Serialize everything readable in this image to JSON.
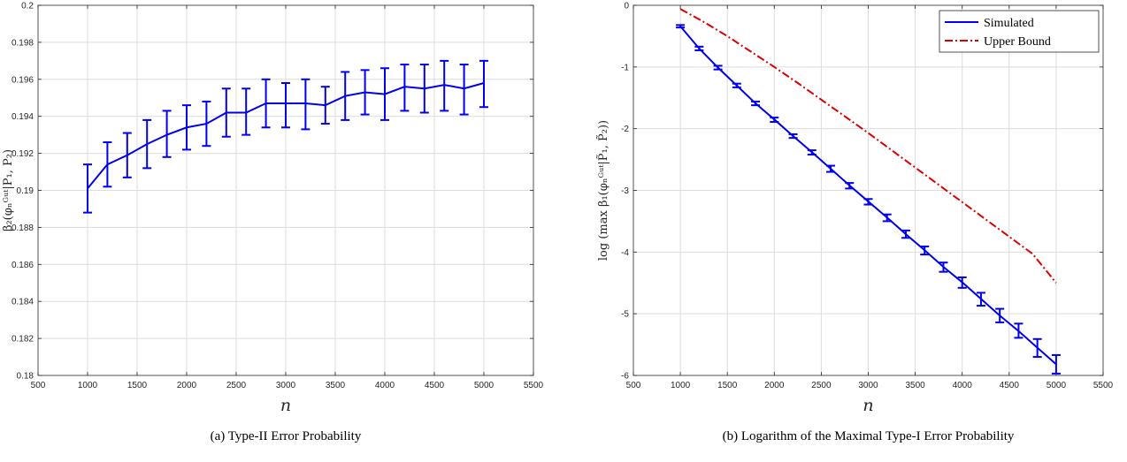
{
  "chart_data": [
    {
      "type": "line",
      "xlabel": "n",
      "ylabel": "β₂(φₙᴳᵘᵗ|P₁, P₂)",
      "caption": "(a) Type-II Error Probability",
      "xlim": [
        500,
        5500
      ],
      "ylim": [
        0.18,
        0.2
      ],
      "xticks": [
        500,
        1000,
        1500,
        2000,
        2500,
        3000,
        3500,
        4000,
        4500,
        5000,
        5500
      ],
      "yticks": [
        0.18,
        0.182,
        0.184,
        0.186,
        0.188,
        0.19,
        0.192,
        0.194,
        0.196,
        0.198,
        0.2
      ],
      "ytick_labels": [
        "0.18",
        "0.182",
        "0.184",
        "0.186",
        "0.188",
        "0.19",
        "0.192",
        "0.194",
        "0.196",
        "0.198",
        "0.2"
      ],
      "grid": true,
      "series": [
        {
          "color": "#0000ee",
          "style": "solid",
          "x": [
            1000,
            1200,
            1400,
            1600,
            1800,
            2000,
            2200,
            2400,
            2600,
            2800,
            3000,
            3200,
            3400,
            3600,
            3800,
            4000,
            4200,
            4400,
            4600,
            4800,
            5000
          ],
          "values": [
            0.1901,
            0.1914,
            0.1919,
            0.1925,
            0.193,
            0.1934,
            0.1936,
            0.1942,
            0.1942,
            0.1947,
            0.1947,
            0.1947,
            0.1946,
            0.1951,
            0.1953,
            0.1952,
            0.1956,
            0.1955,
            0.1957,
            0.1955,
            0.1958
          ],
          "err_low": [
            0.1888,
            0.1902,
            0.1907,
            0.1912,
            0.1918,
            0.1922,
            0.1924,
            0.1929,
            0.193,
            0.1934,
            0.1934,
            0.1933,
            0.1936,
            0.1938,
            0.1941,
            0.1938,
            0.1943,
            0.1942,
            0.1943,
            0.1941,
            0.1945
          ],
          "err_high": [
            0.1914,
            0.1926,
            0.1931,
            0.1938,
            0.1943,
            0.1946,
            0.1948,
            0.1955,
            0.1955,
            0.196,
            0.1958,
            0.196,
            0.1956,
            0.1964,
            0.1965,
            0.1966,
            0.1968,
            0.1968,
            0.197,
            0.1968,
            0.197
          ]
        }
      ]
    },
    {
      "type": "line",
      "xlabel": "n",
      "ylabel": "log (max β₁(φₙᴳᵘᵗ|P̃₁, P̃₂))",
      "caption": "(b) Logarithm of the Maximal Type-I Error Probability",
      "xlim": [
        500,
        5500
      ],
      "ylim": [
        -6,
        0
      ],
      "xticks": [
        500,
        1000,
        1500,
        2000,
        2500,
        3000,
        3500,
        4000,
        4500,
        5000,
        5500
      ],
      "yticks": [
        -6,
        -5,
        -4,
        -3,
        -2,
        -1,
        0
      ],
      "ytick_labels": [
        "-6",
        "-5",
        "-4",
        "-3",
        "-2",
        "-1",
        "0"
      ],
      "grid": true,
      "legend": "top-right",
      "series": [
        {
          "name": "Simulated",
          "color": "#0000ee",
          "style": "solid",
          "x": [
            1000,
            1200,
            1400,
            1600,
            1800,
            2000,
            2200,
            2400,
            2600,
            2800,
            3000,
            3200,
            3400,
            3600,
            3800,
            4000,
            4200,
            4400,
            4600,
            4800,
            5000
          ],
          "values": [
            -0.34,
            -0.7,
            -1.01,
            -1.3,
            -1.59,
            -1.85,
            -2.12,
            -2.38,
            -2.65,
            -2.92,
            -3.18,
            -3.44,
            -3.71,
            -3.97,
            -4.24,
            -4.49,
            -4.76,
            -5.03,
            -5.28,
            -5.55,
            -5.82
          ],
          "err_low": [
            -0.36,
            -0.73,
            -1.04,
            -1.33,
            -1.62,
            -1.89,
            -2.15,
            -2.42,
            -2.7,
            -2.97,
            -3.23,
            -3.5,
            -3.77,
            -4.04,
            -4.32,
            -4.58,
            -4.87,
            -5.14,
            -5.39,
            -5.7,
            -5.97
          ],
          "err_high": [
            -0.32,
            -0.67,
            -0.98,
            -1.27,
            -1.56,
            -1.82,
            -2.09,
            -2.35,
            -2.6,
            -2.88,
            -3.14,
            -3.39,
            -3.65,
            -3.91,
            -4.17,
            -4.41,
            -4.66,
            -4.92,
            -5.16,
            -5.41,
            -5.67
          ]
        },
        {
          "name": "Upper Bound",
          "color": "#dd0000",
          "style": "dashdot",
          "x": [
            1000,
            1250,
            1500,
            1750,
            2000,
            2250,
            2500,
            2750,
            3000,
            3250,
            3500,
            3750,
            4000,
            4250,
            4500,
            4750,
            5000
          ],
          "values": [
            -0.06,
            -0.27,
            -0.5,
            -0.75,
            -1.0,
            -1.26,
            -1.53,
            -1.8,
            -2.07,
            -2.35,
            -2.63,
            -2.91,
            -3.19,
            -3.47,
            -3.75,
            -4.03,
            -4.5
          ]
        }
      ]
    }
  ]
}
